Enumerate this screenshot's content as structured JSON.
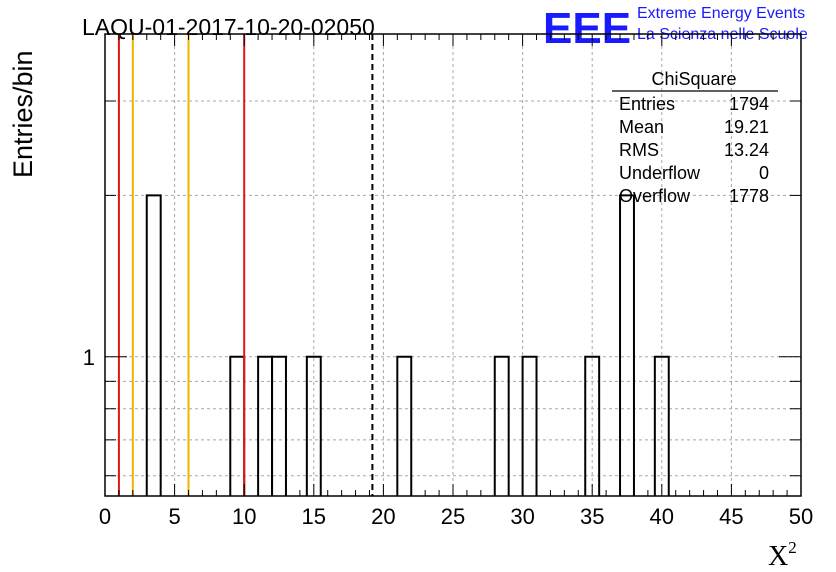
{
  "chart_data": {
    "type": "bar",
    "title": "LAQU-01-2017-10-20-02050",
    "xlabel": "X",
    "xlabel_sup": "2",
    "ylabel": "Entries/bin",
    "xlim": [
      0,
      50
    ],
    "ylim_log": [
      0.55,
      4
    ],
    "y_scale": "log",
    "grid": true,
    "bin_width": 1,
    "x_ticks": [
      0,
      5,
      10,
      15,
      20,
      25,
      30,
      35,
      40,
      45,
      50
    ],
    "y_tick_labels": [
      {
        "value": 1,
        "label": "1"
      }
    ],
    "bins": [
      {
        "x": 3.5,
        "value": 2
      },
      {
        "x": 9.5,
        "value": 1
      },
      {
        "x": 11.5,
        "value": 1
      },
      {
        "x": 12.5,
        "value": 1
      },
      {
        "x": 15,
        "value": 1
      },
      {
        "x": 21.5,
        "value": 1
      },
      {
        "x": 28.5,
        "value": 1
      },
      {
        "x": 30.5,
        "value": 1
      },
      {
        "x": 35,
        "value": 1
      },
      {
        "x": 37.5,
        "value": 2
      },
      {
        "x": 40,
        "value": 1
      }
    ],
    "vertical_lines": [
      {
        "x": 1,
        "color": "#e01818",
        "style": "solid"
      },
      {
        "x": 2,
        "color": "#f0b400",
        "style": "solid"
      },
      {
        "x": 6,
        "color": "#f0b400",
        "style": "solid"
      },
      {
        "x": 10,
        "color": "#e01818",
        "style": "solid"
      },
      {
        "x": 19.21,
        "color": "#000000",
        "style": "dashed"
      }
    ],
    "stats_box": {
      "title": "ChiSquare",
      "rows": [
        {
          "label": "Entries",
          "value": "1794"
        },
        {
          "label": "Mean",
          "value": "19.21"
        },
        {
          "label": "RMS",
          "value": "13.24"
        },
        {
          "label": "Underflow",
          "value": "0"
        },
        {
          "label": "Overflow",
          "value": "1778"
        }
      ]
    }
  },
  "logo": {
    "mark": "EEE",
    "line1": "Extreme Energy Events",
    "line2": "La Scienza nelle Scuole",
    "color": "#1a1aff"
  }
}
